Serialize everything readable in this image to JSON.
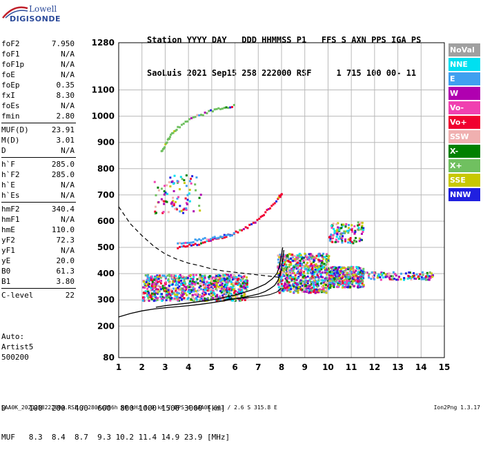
{
  "logo": {
    "line1": "Lowell",
    "line2": "DIGISONDE"
  },
  "header": {
    "line1": "Station YYYY DAY   DDD HHMMSS P1   FFS S AXN PPS IGA PS",
    "line2": "SaoLuis 2021 Sep15 258 222000 RSF     1 715 100 00- 11"
  },
  "params": [
    {
      "label": "foF2",
      "value": "7.950"
    },
    {
      "label": "foF1",
      "value": "N/A"
    },
    {
      "label": "foF1p",
      "value": "N/A"
    },
    {
      "label": "foE",
      "value": "N/A"
    },
    {
      "label": "foEp",
      "value": "0.35"
    },
    {
      "label": "fxI",
      "value": "8.30"
    },
    {
      "label": "foEs",
      "value": "N/A"
    },
    {
      "label": "fmin",
      "value": "2.80"
    },
    {
      "label": "MUF(D)",
      "value": "23.91"
    },
    {
      "label": "M(D)",
      "value": "3.01"
    },
    {
      "label": "D",
      "value": "N/A"
    },
    {
      "label": "h`F",
      "value": "285.0"
    },
    {
      "label": "h`F2",
      "value": "285.0"
    },
    {
      "label": "h`E",
      "value": "N/A"
    },
    {
      "label": "h`Es",
      "value": "N/A"
    },
    {
      "label": "hmF2",
      "value": "340.4"
    },
    {
      "label": "hmF1",
      "value": "N/A"
    },
    {
      "label": "hmE",
      "value": "110.0"
    },
    {
      "label": "yF2",
      "value": "72.3"
    },
    {
      "label": "yF1",
      "value": "N/A"
    },
    {
      "label": "yE",
      "value": "20.0"
    },
    {
      "label": "B0",
      "value": "61.3"
    },
    {
      "label": "B1",
      "value": "3.80"
    },
    {
      "label": "C-level",
      "value": "22"
    }
  ],
  "auto": {
    "line1": "Auto:",
    "line2": "Artist5",
    "line3": "500200"
  },
  "dmuf": {
    "d_row": "D     100  200  400  600  800 1000 1500 3000 [km]",
    "muf_row": "MUF   8.3  8.4  8.7  9.3 10.2 11.4 14.9 23.9 [MHz]"
  },
  "footer": "SAA0K_2021258222000.RSF / 280fx256h 50 kHz 5.0 km / DPS-4 SAA0K 903 / 2.6 S 315.8 E",
  "version": "Ion2Png 1.3.17",
  "legend": [
    {
      "label": "NoVal",
      "color": "#a0a0a0"
    },
    {
      "label": "NNE",
      "color": "#00e0f0"
    },
    {
      "label": "E",
      "color": "#40a0f0"
    },
    {
      "label": "W",
      "color": "#b000b0"
    },
    {
      "label": "Vo-",
      "color": "#f040b0"
    },
    {
      "label": "Vo+",
      "color": "#f00030"
    },
    {
      "label": "SSW",
      "color": "#f0b0b0"
    },
    {
      "label": "X-",
      "color": "#008000"
    },
    {
      "label": "X+",
      "color": "#70c060"
    },
    {
      "label": "SSE",
      "color": "#c8c800"
    },
    {
      "label": "NNW",
      "color": "#2020e0"
    }
  ],
  "chart_data": {
    "type": "scatter",
    "xlim": [
      1,
      15
    ],
    "ylim": [
      80,
      1280
    ],
    "x_ticks": [
      1,
      2,
      3,
      4,
      5,
      6,
      7,
      8,
      9,
      10,
      11,
      12,
      13,
      14,
      15
    ],
    "y_ticks": [
      80,
      200,
      300,
      400,
      500,
      600,
      700,
      800,
      900,
      1000,
      1100,
      1280
    ],
    "grid": true,
    "curves": {
      "profile_solid": [
        [
          1.0,
          235
        ],
        [
          1.5,
          248
        ],
        [
          2.0,
          258
        ],
        [
          2.5,
          265
        ],
        [
          3.0,
          270
        ],
        [
          3.5,
          274
        ],
        [
          4.0,
          278
        ],
        [
          4.5,
          283
        ],
        [
          5.0,
          289
        ],
        [
          5.5,
          296
        ],
        [
          6.0,
          304
        ],
        [
          6.5,
          312
        ],
        [
          7.0,
          322
        ],
        [
          7.3,
          332
        ],
        [
          7.5,
          342
        ],
        [
          7.7,
          355
        ],
        [
          7.85,
          375
        ],
        [
          7.95,
          400
        ],
        [
          8.0,
          420
        ],
        [
          8.05,
          455
        ],
        [
          8.1,
          490
        ]
      ],
      "trace_solid": [
        [
          2.6,
          272
        ],
        [
          3.0,
          278
        ],
        [
          4.0,
          288
        ],
        [
          5.0,
          300
        ],
        [
          6.0,
          318
        ],
        [
          6.8,
          340
        ],
        [
          7.3,
          360
        ],
        [
          7.6,
          380
        ],
        [
          7.8,
          400
        ],
        [
          7.9,
          425
        ],
        [
          8.0,
          470
        ],
        [
          8.05,
          500
        ]
      ],
      "model_dashed": [
        [
          1.0,
          655
        ],
        [
          1.5,
          590
        ],
        [
          2.0,
          545
        ],
        [
          2.5,
          505
        ],
        [
          3.0,
          475
        ],
        [
          3.5,
          455
        ],
        [
          4.0,
          440
        ],
        [
          4.5,
          430
        ],
        [
          5.0,
          418
        ],
        [
          5.5,
          410
        ],
        [
          6.0,
          405
        ],
        [
          6.5,
          400
        ],
        [
          7.0,
          395
        ],
        [
          7.5,
          390
        ],
        [
          8.0,
          385
        ]
      ],
      "low_curve": [
        [
          5.5,
          300
        ],
        [
          6.0,
          304
        ],
        [
          6.5,
          308
        ],
        [
          7.0,
          312
        ],
        [
          7.5,
          320
        ],
        [
          7.8,
          330
        ],
        [
          8.0,
          345
        ]
      ]
    },
    "traces": [
      {
        "name": "F2 second hop",
        "points": [
          [
            3.5,
            505
          ],
          [
            4.0,
            512
          ],
          [
            4.5,
            520
          ],
          [
            5.0,
            532
          ],
          [
            5.5,
            545
          ],
          [
            6.0,
            560
          ],
          [
            6.5,
            580
          ],
          [
            7.0,
            610
          ],
          [
            7.4,
            650
          ],
          [
            7.8,
            690
          ],
          [
            8.0,
            710
          ]
        ],
        "color": "#f00030"
      },
      {
        "name": "O-trace echoes",
        "points": [
          [
            3.5,
            520
          ],
          [
            4.0,
            526
          ],
          [
            4.5,
            532
          ],
          [
            5.0,
            540
          ],
          [
            5.5,
            548
          ],
          [
            6.0,
            555
          ]
        ],
        "color": "#40a0f0"
      },
      {
        "name": "high hop",
        "points": [
          [
            2.8,
            870
          ],
          [
            3.0,
            900
          ],
          [
            3.2,
            930
          ],
          [
            3.5,
            960
          ],
          [
            4.0,
            990
          ],
          [
            4.5,
            1010
          ],
          [
            5.0,
            1025
          ],
          [
            5.5,
            1035
          ],
          [
            6.0,
            1045
          ]
        ],
        "color": "#70c060"
      }
    ],
    "clusters": [
      {
        "x": [
          2.0,
          6.5
        ],
        "y": [
          300,
          400
        ],
        "n": 900
      },
      {
        "x": [
          7.8,
          10.0
        ],
        "y": [
          330,
          480
        ],
        "n": 700
      },
      {
        "x": [
          10.0,
          11.5
        ],
        "y": [
          350,
          430
        ],
        "n": 400
      },
      {
        "x": [
          11.5,
          14.5
        ],
        "y": [
          380,
          410
        ],
        "n": 120
      },
      {
        "x": [
          10.0,
          11.5
        ],
        "y": [
          520,
          600
        ],
        "n": 120
      },
      {
        "x": [
          2.5,
          4.5
        ],
        "y": [
          630,
          780
        ],
        "n": 90
      }
    ]
  }
}
